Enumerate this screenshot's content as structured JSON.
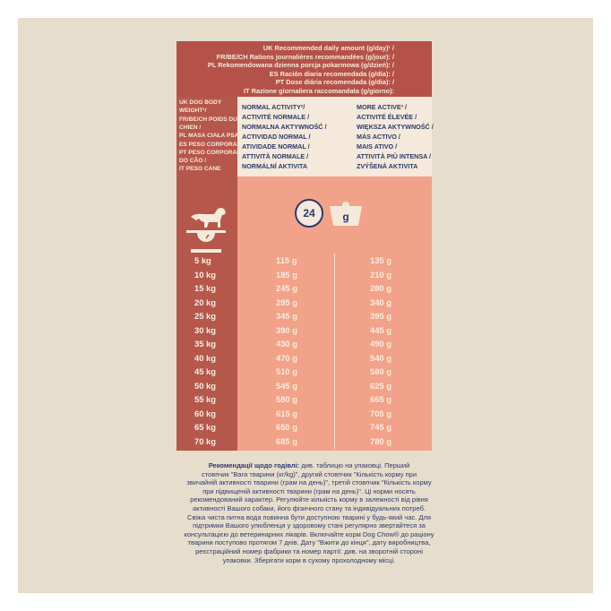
{
  "header": {
    "lines": [
      "UK Recommended daily amount (g/day)¹ /",
      "FR/BE/CH Rations journalières recommandées (g/jour): /",
      "PL Rekomendowana dzienna porcja pokarmowa (g/dzień): /",
      "ES Ración diaria recomendada (g/día): /",
      "PT Dose diária recomendada (g/dia): /",
      "IT Razione giornaliera raccomandata (g/giorno):"
    ]
  },
  "table": {
    "weight_label": [
      "UK DOG BODY",
      "WEIGHT¹/",
      "FR/BE/CH POIDS DU",
      "CHIEN /",
      "PL MASA CIAŁA PSA /",
      "ES PESO CORPORAL /",
      "PT PESO CORPORAL",
      "DO CÃO /",
      "IT PESO CANE"
    ],
    "normal_label": [
      "NORMAL ACTIVITY²/",
      "ACTIVITÉ NORMALE /",
      "NORMALNA AKTYWNOŚĆ /",
      "ACTIVIDAD NORMAL /",
      "ATIVIDADE NORMAL /",
      "ATTIVITÀ NORMALE /",
      "NORMÁLNÍ AKTIVITA"
    ],
    "active_label": [
      "MORE ACTIVE³ /",
      "ACTIVITÉ ÉLEVÉE /",
      "WIĘKSZA AKTYWNOŚĆ /",
      "MÁS ACTIVO /",
      "MAIS ATIVO /",
      "ATTIVITÀ PIÙ INTENSA /",
      "ZVÝŠENÁ AKTIVITA"
    ],
    "clock_icon": "24",
    "bowl_icon": "g",
    "rows": [
      [
        "5 kg",
        "115 g",
        "135 g"
      ],
      [
        "10 kg",
        "185 g",
        "210 g"
      ],
      [
        "15 kg",
        "245 g",
        "280 g"
      ],
      [
        "20 kg",
        "295 g",
        "340 g"
      ],
      [
        "25 kg",
        "345 g",
        "395 g"
      ],
      [
        "30 kg",
        "390 g",
        "445 g"
      ],
      [
        "35 kg",
        "430 g",
        "490 g"
      ],
      [
        "40 kg",
        "470 g",
        "540 g"
      ],
      [
        "45 kg",
        "510 g",
        "580 g"
      ],
      [
        "50 kg",
        "545 g",
        "625 g"
      ],
      [
        "55 kg",
        "580 g",
        "665 g"
      ],
      [
        "60 kg",
        "615 g",
        "705 g"
      ],
      [
        "65 kg",
        "650 g",
        "745 g"
      ],
      [
        "70 kg",
        "685 g",
        "780 g"
      ]
    ]
  },
  "note": {
    "label": "Рекомендації щодо годівлі:",
    "lines": [
      " див. таблицю на упаковці. Перший",
      "стовпчик \"Вага тварини (кг/kg)\", другий стовпчик \"Кількість корму при",
      "звичайній активності тварини (грам на день)\", третій стовпчик \"Кількість корму",
      "при підвищеній активності тварини (грам на день)\". Ці норми носять",
      "рекомендований характер. Регулюйте кількість корму в залежності від рівня",
      "активності Вашого собаки, його фізичного стану та індивідуальних потреб.",
      "Свіжа чиста питна вода повинна бути доступною тварині у будь-який час. Для",
      "підтримки Вашого улюбленця у здоровому стані регулярно звертайтеся за",
      "консультацією до ветеринарних лікарів. Включайте корм Dog Chow® до раціону",
      "тварини поступово протягом 7 днів. Дату \"Вжити до кінця\", дату виробництва,",
      "реєстраційний номер фабрики та номер партії: див. на зворотній стороні",
      "упаковки. Зберігати корм в сухому прохолодному місці."
    ]
  }
}
